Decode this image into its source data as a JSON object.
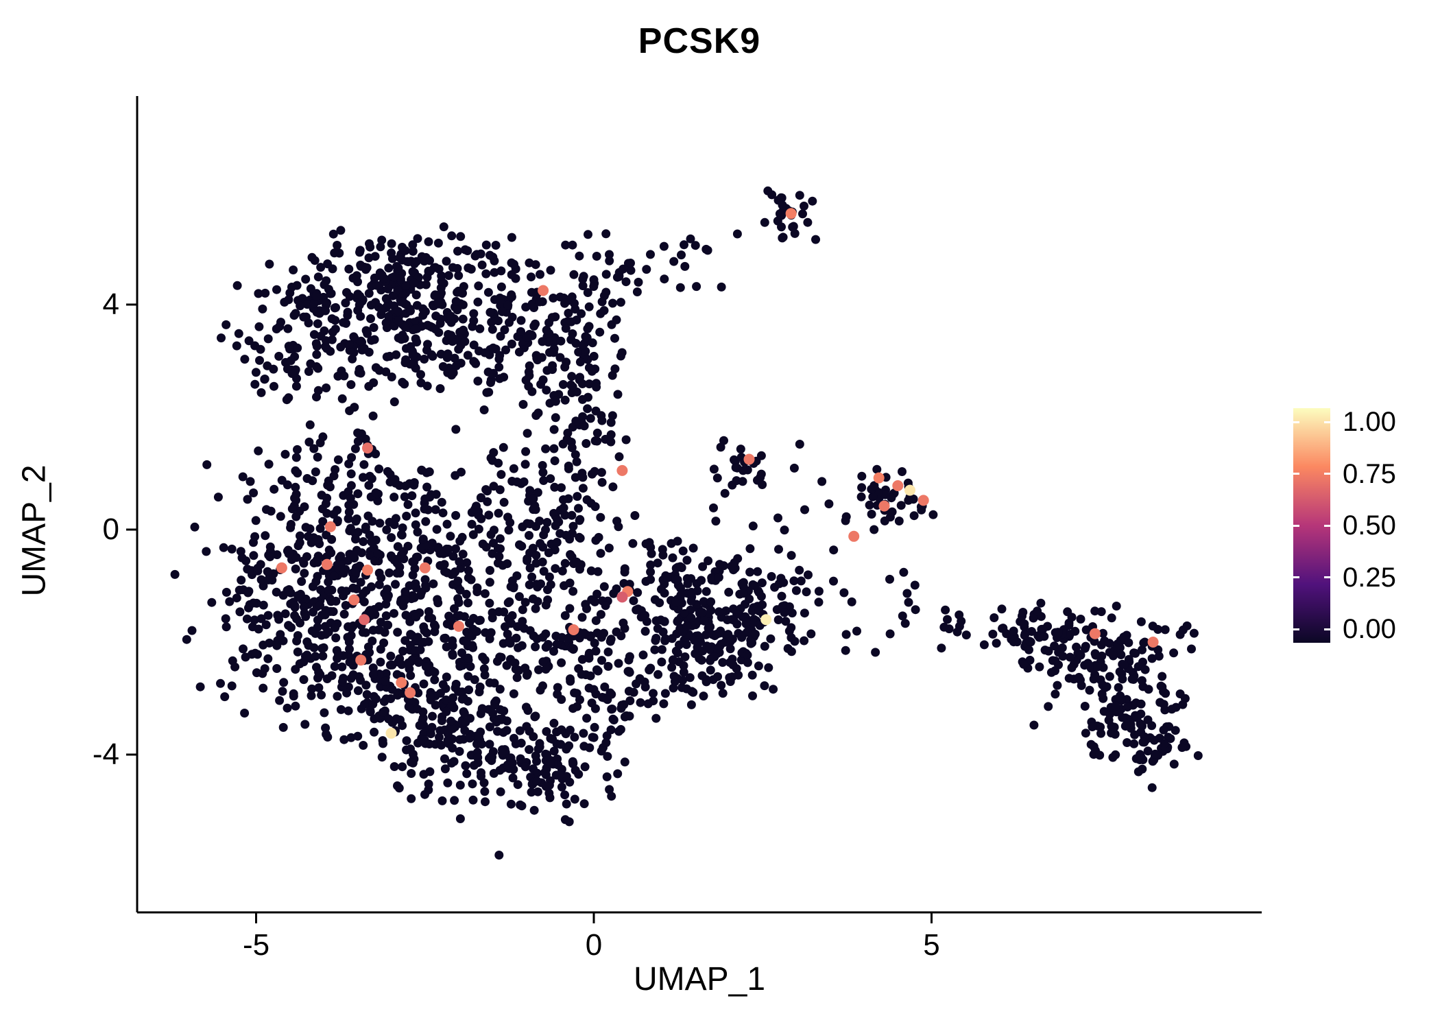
{
  "chart_data": {
    "type": "scatter",
    "title": "PCSK9",
    "xlabel": "UMAP_1",
    "ylabel": "UMAP_2",
    "x_ticks": [
      {
        "value": -5,
        "label": "-5"
      },
      {
        "value": 0,
        "label": "0"
      },
      {
        "value": 5,
        "label": "5"
      }
    ],
    "y_ticks": [
      {
        "value": -4,
        "label": "-4"
      },
      {
        "value": 0,
        "label": "0"
      },
      {
        "value": 4,
        "label": "4"
      }
    ],
    "x_range": [
      -6.8,
      9.9
    ],
    "y_range": [
      -6.8,
      7.7
    ],
    "grid": false,
    "legend_position": "right",
    "point_color_zero": "#0B0724",
    "colorbar": {
      "ticks": [
        {
          "value": 1.0,
          "label": "1.00"
        },
        {
          "value": 0.75,
          "label": "0.75"
        },
        {
          "value": 0.5,
          "label": "0.50"
        },
        {
          "value": 0.25,
          "label": "0.25"
        },
        {
          "value": 0.0,
          "label": "0.00"
        }
      ],
      "stops": [
        {
          "value": 0.0,
          "color": "#0B0724"
        },
        {
          "value": 0.25,
          "color": "#51127C"
        },
        {
          "value": 0.5,
          "color": "#B63679"
        },
        {
          "value": 0.75,
          "color": "#FB8861"
        },
        {
          "value": 1.0,
          "color": "#FCFDBF"
        }
      ]
    },
    "seed": 1337,
    "base_clusters": [
      {
        "cx": -3.3,
        "cy": 3.9,
        "sx": 0.85,
        "sy": 0.55,
        "n": 200
      },
      {
        "cx": -1.9,
        "cy": 3.5,
        "sx": 0.75,
        "sy": 0.6,
        "n": 180
      },
      {
        "cx": -4.35,
        "cy": 3.05,
        "sx": 0.5,
        "sy": 0.45,
        "n": 70
      },
      {
        "cx": -0.65,
        "cy": 3.0,
        "sx": 0.5,
        "sy": 0.65,
        "n": 80
      },
      {
        "cx": -2.6,
        "cy": 4.65,
        "sx": 0.75,
        "sy": 0.3,
        "n": 80
      },
      {
        "cx": -0.25,
        "cy": 4.05,
        "sx": 0.4,
        "sy": 0.5,
        "n": 45
      },
      {
        "cx": 0.6,
        "cy": 4.55,
        "sx": 0.35,
        "sy": 0.3,
        "n": 20
      },
      {
        "cx": -3.8,
        "cy": 0.3,
        "sx": 0.8,
        "sy": 0.75,
        "n": 170
      },
      {
        "cx": -4.35,
        "cy": -1.5,
        "sx": 0.75,
        "sy": 0.85,
        "n": 190
      },
      {
        "cx": -2.8,
        "cy": -1.0,
        "sx": 0.8,
        "sy": 0.75,
        "n": 180
      },
      {
        "cx": -3.0,
        "cy": -2.8,
        "sx": 0.75,
        "sy": 0.65,
        "n": 170
      },
      {
        "cx": -1.5,
        "cy": -2.0,
        "sx": 0.8,
        "sy": 0.85,
        "n": 160
      },
      {
        "cx": -1.8,
        "cy": -3.8,
        "sx": 0.7,
        "sy": 0.5,
        "n": 130
      },
      {
        "cx": -0.8,
        "cy": -4.35,
        "sx": 0.5,
        "sy": 0.35,
        "n": 80
      },
      {
        "cx": -0.5,
        "cy": -0.5,
        "sx": 0.6,
        "sy": 0.75,
        "n": 100
      },
      {
        "cx": -1.5,
        "cy": 0.5,
        "sx": 0.6,
        "sy": 0.5,
        "n": 70
      },
      {
        "cx": 0.05,
        "cy": -2.5,
        "sx": 0.5,
        "sy": 0.75,
        "n": 90
      },
      {
        "cx": -0.15,
        "cy": 1.8,
        "sx": 0.35,
        "sy": 0.55,
        "n": 50
      },
      {
        "cx": 1.5,
        "cy": -1.0,
        "sx": 0.55,
        "sy": 0.5,
        "n": 110
      },
      {
        "cx": 1.9,
        "cy": -1.8,
        "sx": 0.55,
        "sy": 0.5,
        "n": 110
      },
      {
        "cx": 1.2,
        "cy": -2.3,
        "sx": 0.5,
        "sy": 0.4,
        "n": 70
      },
      {
        "cx": 2.6,
        "cy": -1.3,
        "sx": 0.35,
        "sy": 0.45,
        "n": 50
      },
      {
        "cx": 2.85,
        "cy": 5.6,
        "sx": 0.2,
        "sy": 0.24,
        "n": 28
      },
      {
        "cx": 2.25,
        "cy": 1.15,
        "sx": 0.28,
        "sy": 0.22,
        "n": 22
      },
      {
        "cx": 4.42,
        "cy": 0.62,
        "sx": 0.3,
        "sy": 0.3,
        "n": 40
      },
      {
        "cx": 4.2,
        "cy": -1.4,
        "sx": 0.8,
        "sy": 0.45,
        "n": 20
      },
      {
        "cx": 6.6,
        "cy": -1.9,
        "sx": 0.4,
        "sy": 0.25,
        "n": 55
      },
      {
        "cx": 7.3,
        "cy": -2.3,
        "sx": 0.45,
        "sy": 0.4,
        "n": 75
      },
      {
        "cx": 7.9,
        "cy": -3.3,
        "sx": 0.45,
        "sy": 0.45,
        "n": 85
      },
      {
        "cx": 8.4,
        "cy": -3.85,
        "sx": 0.28,
        "sy": 0.25,
        "n": 35
      },
      {
        "cx": 8.3,
        "cy": -2.05,
        "sx": 0.3,
        "sy": 0.28,
        "n": 28
      },
      {
        "cx": 3.1,
        "cy": 0.6,
        "sx": 0.5,
        "sy": 0.6,
        "n": 10
      },
      {
        "cx": 5.5,
        "cy": -1.8,
        "sx": 0.4,
        "sy": 0.2,
        "n": 8
      },
      {
        "cx": 1.35,
        "cy": 4.85,
        "sx": 0.45,
        "sy": 0.25,
        "n": 12
      }
    ],
    "expressing_points": [
      {
        "x": -0.75,
        "y": 4.25,
        "value": 0.7
      },
      {
        "x": 2.92,
        "y": 5.62,
        "value": 0.72
      },
      {
        "x": -3.35,
        "y": 1.45,
        "value": 0.68
      },
      {
        "x": 0.42,
        "y": 1.05,
        "value": 0.7
      },
      {
        "x": -3.9,
        "y": 0.05,
        "value": 0.7
      },
      {
        "x": -4.62,
        "y": -0.68,
        "value": 0.7
      },
      {
        "x": -3.95,
        "y": -0.62,
        "value": 0.7
      },
      {
        "x": -3.35,
        "y": -0.72,
        "value": 0.72
      },
      {
        "x": -2.5,
        "y": -0.68,
        "value": 0.7
      },
      {
        "x": -3.55,
        "y": -1.25,
        "value": 0.7
      },
      {
        "x": -3.4,
        "y": -1.6,
        "value": 0.65
      },
      {
        "x": -2.0,
        "y": -1.72,
        "value": 0.7
      },
      {
        "x": -0.3,
        "y": -1.78,
        "value": 0.7
      },
      {
        "x": 0.5,
        "y": -1.1,
        "value": 0.72
      },
      {
        "x": 0.42,
        "y": -1.2,
        "value": 0.62
      },
      {
        "x": 2.55,
        "y": -1.6,
        "value": 0.97
      },
      {
        "x": -3.45,
        "y": -2.32,
        "value": 0.7
      },
      {
        "x": -2.85,
        "y": -2.72,
        "value": 0.72
      },
      {
        "x": -2.72,
        "y": -2.9,
        "value": 0.7
      },
      {
        "x": -3.0,
        "y": -3.62,
        "value": 0.95
      },
      {
        "x": 2.3,
        "y": 1.25,
        "value": 0.7
      },
      {
        "x": 4.22,
        "y": 0.92,
        "value": 0.72
      },
      {
        "x": 4.5,
        "y": 0.78,
        "value": 0.7
      },
      {
        "x": 4.68,
        "y": 0.7,
        "value": 0.95
      },
      {
        "x": 4.88,
        "y": 0.52,
        "value": 0.7
      },
      {
        "x": 4.3,
        "y": 0.42,
        "value": 0.7
      },
      {
        "x": 3.85,
        "y": -0.12,
        "value": 0.7
      },
      {
        "x": 7.42,
        "y": -1.85,
        "value": 0.7
      },
      {
        "x": 8.28,
        "y": -2.0,
        "value": 0.7
      }
    ]
  }
}
